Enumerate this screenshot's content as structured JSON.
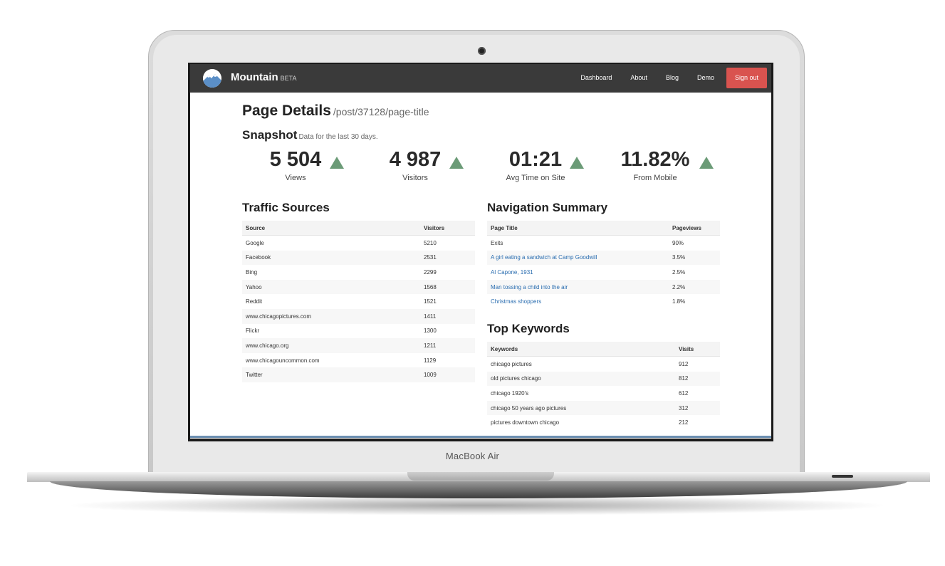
{
  "device": {
    "model_label": "MacBook Air"
  },
  "navbar": {
    "brand": "Mountain",
    "brand_badge": "BETA",
    "links": [
      "Dashboard",
      "About",
      "Blog",
      "Demo"
    ],
    "signout_label": "Sign out",
    "signout_color": "#d9534f"
  },
  "page": {
    "title": "Page Details",
    "path": "/post/37128/page-title"
  },
  "snapshot": {
    "title": "Snapshot",
    "subtitle": "Data for the last 30 days.",
    "trend_color": "#6b9b77",
    "stats": [
      {
        "value": "5 504",
        "label": "Views",
        "trend": "up"
      },
      {
        "value": "4 987",
        "label": "Visitors",
        "trend": "up"
      },
      {
        "value": "01:21",
        "label": "Avg Time on Site",
        "trend": "up"
      },
      {
        "value": "11.82%",
        "label": "From Mobile",
        "trend": "up"
      }
    ]
  },
  "traffic": {
    "title": "Traffic Sources",
    "headers": [
      "Source",
      "Visitors"
    ],
    "rows": [
      [
        "Google",
        "5210"
      ],
      [
        "Facebook",
        "2531"
      ],
      [
        "Bing",
        "2299"
      ],
      [
        "Yahoo",
        "1568"
      ],
      [
        "Reddit",
        "1521"
      ],
      [
        "www.chicagopictures.com",
        "1411"
      ],
      [
        "Flickr",
        "1300"
      ],
      [
        "www.chicago.org",
        "1211"
      ],
      [
        "www.chicagouncommon.com",
        "1129"
      ],
      [
        "Twitter",
        "1009"
      ]
    ]
  },
  "navigation": {
    "title": "Navigation Summary",
    "headers": [
      "Page Title",
      "Pageviews"
    ],
    "rows": [
      {
        "title": "Exits",
        "value": "90%",
        "link": false
      },
      {
        "title": "A girl eating a sandwich at Camp Goodwill",
        "value": "3.5%",
        "link": true
      },
      {
        "title": "Al Capone, 1931",
        "value": "2.5%",
        "link": true
      },
      {
        "title": "Man tossing a child into the air",
        "value": "2.2%",
        "link": true
      },
      {
        "title": "Christmas shoppers",
        "value": "1.8%",
        "link": true
      }
    ]
  },
  "keywords": {
    "title": "Top Keywords",
    "headers": [
      "Keywords",
      "Visits"
    ],
    "rows": [
      [
        "chicago pictures",
        "912"
      ],
      [
        "old pictures chicago",
        "812"
      ],
      [
        "chicago 1920's",
        "612"
      ],
      [
        "chicago 50 years ago pictures",
        "312"
      ],
      [
        "pictures downtown chicago",
        "212"
      ]
    ]
  }
}
